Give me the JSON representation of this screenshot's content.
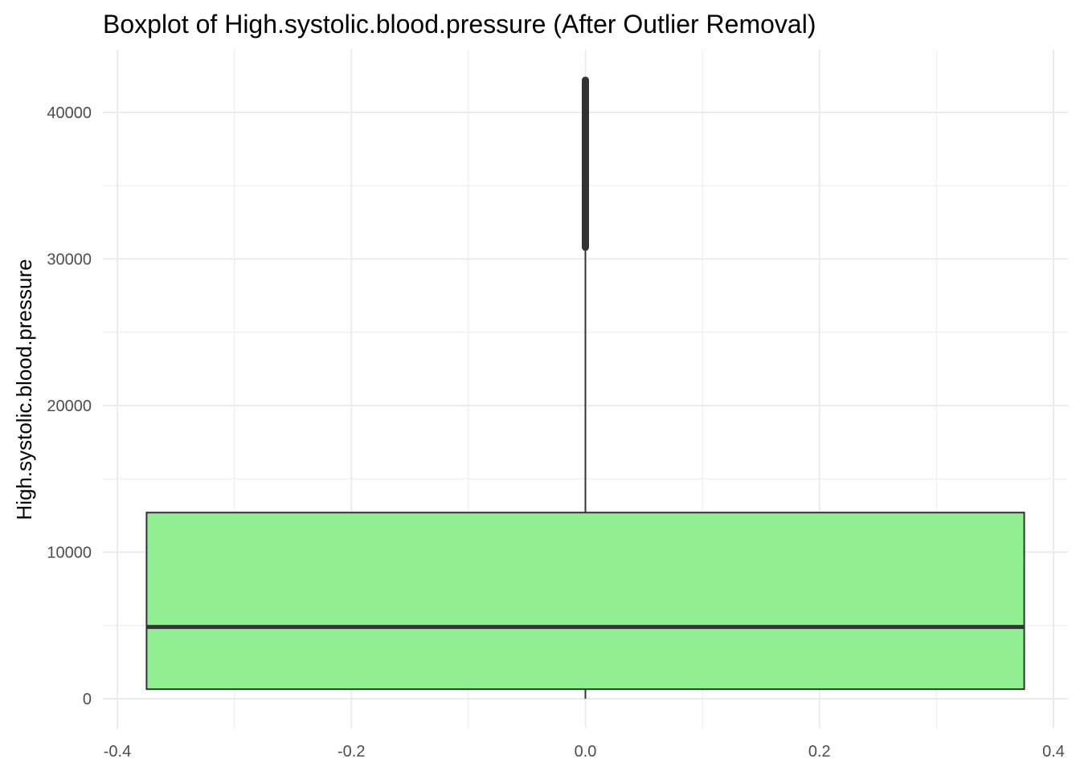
{
  "chart_data": {
    "type": "boxplot",
    "title": "Boxplot of High.systolic.blood.pressure (After Outlier Removal)",
    "xlabel": "",
    "ylabel": "High.systolic.blood.pressure",
    "xlim": [
      -0.4,
      0.4
    ],
    "ylim": [
      0,
      42200
    ],
    "x_ticks": [
      -0.4,
      -0.2,
      0.0,
      0.2,
      0.4
    ],
    "x_tick_labels": [
      "-0.4",
      "-0.2",
      "0.0",
      "0.2",
      "0.4"
    ],
    "y_ticks": [
      0,
      10000,
      20000,
      30000,
      40000
    ],
    "y_tick_labels": [
      "0",
      "10000",
      "20000",
      "30000",
      "40000"
    ],
    "grid": true,
    "box": {
      "x_center": 0.0,
      "x_left": -0.375,
      "x_right": 0.375,
      "min": 0,
      "q1": 650,
      "median": 4900,
      "q3": 12700,
      "whisker_high": 30800,
      "outlier_range": [
        30800,
        42200
      ]
    },
    "colors": {
      "box_fill": "#90EE90",
      "box_stroke": "#333333",
      "grid": "#ebebeb",
      "background": "#ffffff"
    }
  }
}
